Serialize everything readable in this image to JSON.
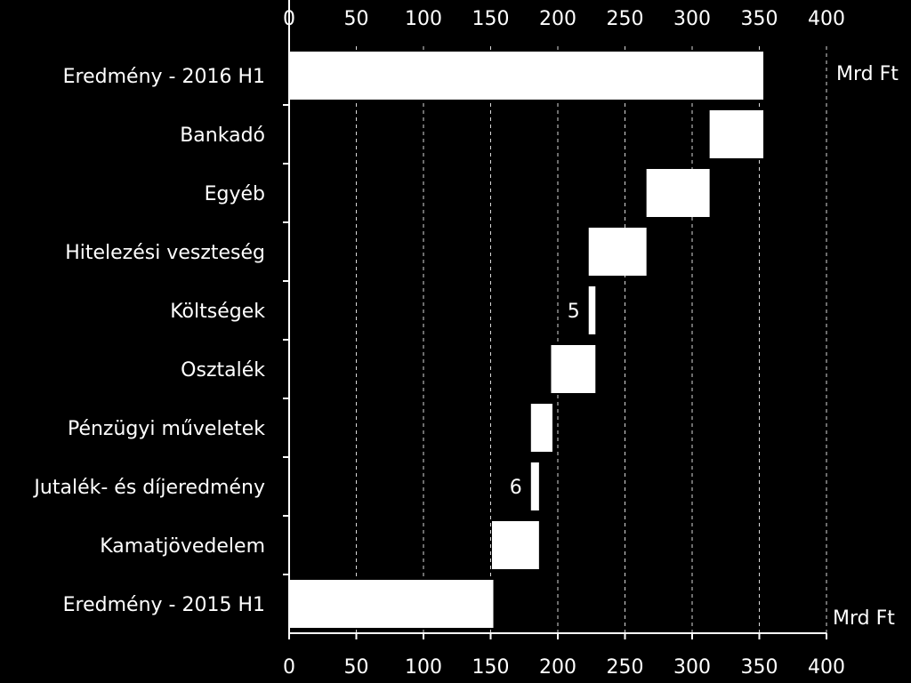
{
  "chart_data": {
    "type": "bar",
    "subtype": "waterfall-horizontal",
    "unit": "Mrd Ft",
    "xlim": [
      0,
      400
    ],
    "xticks": [
      0,
      50,
      100,
      150,
      200,
      250,
      300,
      350,
      400
    ],
    "grid": "vertical-dashed",
    "categories": [
      "Eredmény - 2016 H1",
      "Bankadó",
      "Egyéb",
      "Hitelezési veszteség",
      "Költségek",
      "Osztalék",
      "Pénzügyi műveletek",
      "Jutalék- és díjeredmény",
      "Kamatjövedelem",
      "Eredmény - 2015 H1"
    ],
    "bars": [
      {
        "start": 0,
        "end": 353
      },
      {
        "start": 313,
        "end": 353
      },
      {
        "start": 266,
        "end": 313
      },
      {
        "start": 223,
        "end": 266
      },
      {
        "start": 223,
        "end": 228
      },
      {
        "start": 195,
        "end": 228
      },
      {
        "start": 180,
        "end": 196
      },
      {
        "start": 180,
        "end": 186
      },
      {
        "start": 151,
        "end": 186
      },
      {
        "start": 0,
        "end": 152
      }
    ],
    "data_labels": [
      {
        "index": 4,
        "text": "5"
      },
      {
        "index": 7,
        "text": "6"
      }
    ],
    "colors": {
      "background": "#000000",
      "bar": "#ffffff",
      "axis": "#ffffff",
      "grid": "#ffffff"
    }
  }
}
